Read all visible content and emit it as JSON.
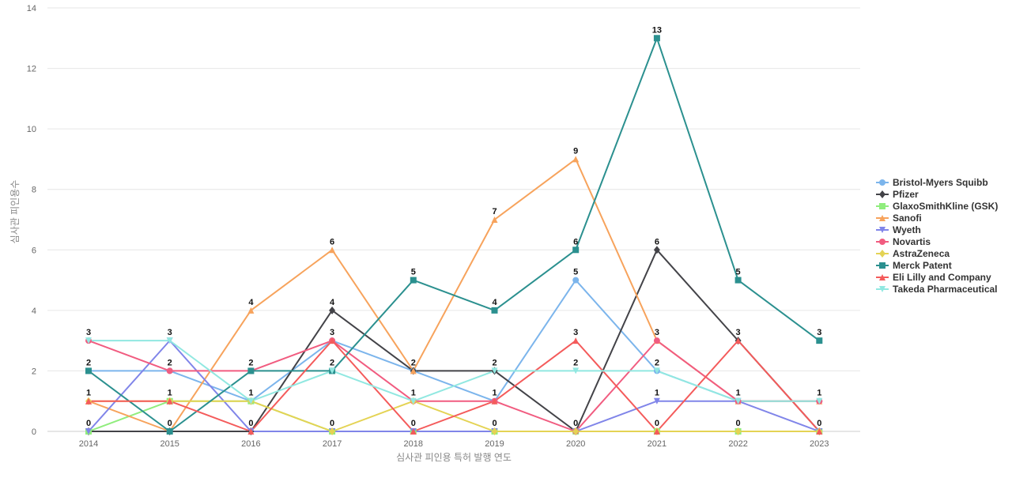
{
  "chart_data": {
    "type": "line",
    "title": "",
    "xlabel": "심사관 피인용 특허 발행 연도",
    "ylabel": "심사관 피인용수",
    "x": [
      "2014",
      "2015",
      "2016",
      "2017",
      "2018",
      "2019",
      "2020",
      "2021",
      "2022",
      "2023"
    ],
    "ylim": [
      0,
      14
    ],
    "yticks": [
      0,
      2,
      4,
      6,
      8,
      10,
      12,
      14
    ],
    "grid": true,
    "legend_position": "right",
    "data_labels_series": "max-per-category",
    "series": [
      {
        "name": "Bristol-Myers Squibb",
        "color": "#7cb5ec",
        "marker": "circle",
        "values": [
          2,
          2,
          1,
          3,
          2,
          1,
          5,
          2,
          1,
          1
        ]
      },
      {
        "name": "Pfizer",
        "color": "#434348",
        "marker": "diamond",
        "values": [
          0,
          0,
          0,
          4,
          2,
          2,
          0,
          6,
          3,
          0
        ]
      },
      {
        "name": "GlaxoSmithKline (GSK)",
        "color": "#90ed7d",
        "marker": "square",
        "values": [
          0,
          1,
          1,
          0,
          0,
          0,
          0,
          0,
          0,
          0
        ]
      },
      {
        "name": "Sanofi",
        "color": "#f7a35c",
        "marker": "triangle",
        "values": [
          1,
          0,
          4,
          6,
          2,
          7,
          9,
          3,
          1,
          1
        ]
      },
      {
        "name": "Wyeth",
        "color": "#8085e9",
        "marker": "triangle-down",
        "values": [
          0,
          3,
          0,
          0,
          0,
          0,
          0,
          1,
          1,
          0
        ]
      },
      {
        "name": "Novartis",
        "color": "#f15c80",
        "marker": "circle",
        "values": [
          3,
          2,
          2,
          3,
          1,
          1,
          0,
          3,
          1,
          1
        ]
      },
      {
        "name": "AstraZeneca",
        "color": "#e4d354",
        "marker": "diamond",
        "values": [
          1,
          1,
          1,
          0,
          1,
          0,
          0,
          0,
          0,
          0
        ]
      },
      {
        "name": "Merck Patent",
        "color": "#2b908f",
        "marker": "square",
        "values": [
          2,
          0,
          2,
          2,
          5,
          4,
          6,
          13,
          5,
          3
        ]
      },
      {
        "name": "Eli Lilly and Company",
        "color": "#f45b5b",
        "marker": "triangle",
        "values": [
          1,
          1,
          0,
          3,
          0,
          1,
          3,
          0,
          3,
          0
        ]
      },
      {
        "name": "Takeda Pharmaceutical",
        "color": "#91e8e1",
        "marker": "triangle-down",
        "values": [
          3,
          3,
          1,
          2,
          1,
          2,
          2,
          2,
          1,
          1
        ]
      }
    ],
    "data_labels": {
      "top": [
        "3",
        "3",
        "4",
        "6",
        "5",
        "7",
        "9",
        "13",
        "5",
        "3"
      ],
      "second": [
        "2",
        "2",
        "2",
        "4",
        "2",
        "4",
        "6",
        "6",
        "3",
        "1"
      ],
      "third": [
        "1",
        "1",
        "1",
        "3",
        "1",
        "2",
        "5",
        "3",
        "1",
        "0"
      ],
      "fourth": [
        "0",
        "0",
        "0",
        "2",
        "0",
        "1",
        "3",
        "2",
        "0",
        ""
      ],
      "fifth": [
        "",
        "",
        "",
        "0",
        "",
        "0",
        "2",
        "1",
        "",
        ""
      ],
      "sixth": [
        "",
        "",
        "",
        "",
        "",
        "",
        "0",
        "0",
        "",
        ""
      ]
    }
  }
}
